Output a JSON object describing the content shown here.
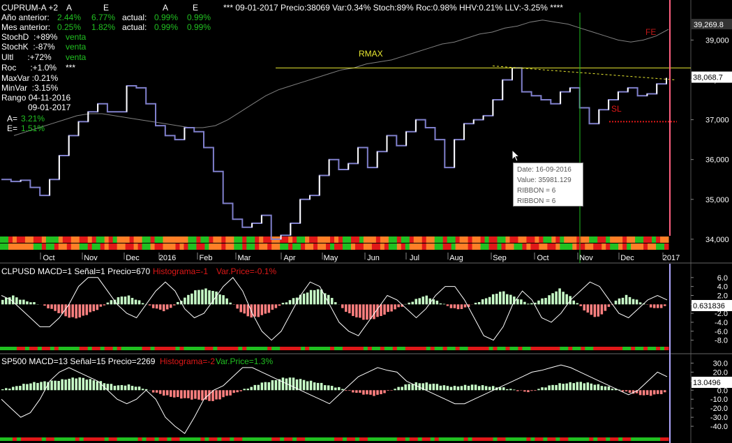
{
  "header": {
    "symbol": "CUPRUM-A +2",
    "col_a": "A",
    "col_e": "E",
    "col_a2": "A",
    "col_e2": "E",
    "year_label": "Año anterior:",
    "year_a": "2.44%",
    "year_e": "6.77%",
    "actual_label": "actual:",
    "year_actual_a": "0.99%",
    "year_actual_e": "0.99%",
    "month_label": "Mes anterior:",
    "month_a": "0.25%",
    "month_e": "1.82%",
    "month_actual_a": "0.99%",
    "month_actual_e": "0.99%",
    "summary": "*** 09-01-2017 Precio:38069 Var:0.34% Stoch:89% Roc:0.98% HHV:0.21% LLV:-3.25% ****"
  },
  "indicators": [
    {
      "label": "StochD  :+89%",
      "signal": "venta"
    },
    {
      "label": "StochK  :-87%",
      "signal": "venta"
    },
    {
      "label": "Ultl      :+72%",
      "signal": "venta"
    },
    {
      "label": "Roc      :+1.0%",
      "signal": "***"
    }
  ],
  "stats": {
    "maxvar": "MaxVar :0.21%",
    "minvar": "MinVar  :3.15%",
    "rango": "Rango 04-11-2016",
    "rango_end": "09-01-2017",
    "a_label": "A=",
    "a_value": "3.21%",
    "e_label": "E=",
    "e_value": "1.51%"
  },
  "tooltip": {
    "date": "Date: 16-09-2016",
    "value": "Value: 35981.129",
    "ribbon1": "RIBBON = 6",
    "ribbon2": "RIBBON = 6"
  },
  "labels": {
    "rmax": "RMAX",
    "sl": "SL",
    "fe": "FE"
  },
  "colors": {
    "price": "#8080cc",
    "up": "#ffffff",
    "green": "#21c021",
    "red": "#e01818",
    "orange": "#ff7f27",
    "yellow": "#e8e830",
    "pink": "#ff6080",
    "lavender": "#b0a8ff",
    "hist_pos": "#c8ffc8",
    "hist_neg": "#ff8080"
  },
  "chart_data": [
    {
      "type": "line",
      "title": "CUPRUM-A +2",
      "x_ticks": [
        "Oct",
        "Nov",
        "Dec",
        "2016",
        "Feb",
        "Mar",
        "Apr",
        "May",
        "Jun",
        "Jul",
        "Aug",
        "Sep",
        "Oct",
        "Nov",
        "Dec",
        "2017"
      ],
      "ylim": [
        33700,
        39900
      ],
      "y_ticks": [
        34000,
        35000,
        36000,
        37000,
        38000,
        39000
      ],
      "y_tick_labels": [
        "34,000",
        "35,000",
        "36,000",
        "37,000",
        "38,000",
        "39,000"
      ],
      "last_value_label": "38,068.7",
      "upper_value_label": "39,269.8",
      "rmax_level": 38300,
      "sl_level": 36950,
      "series": [
        {
          "values": [
            35500,
            35450,
            35480,
            35300,
            35100,
            35500,
            36100,
            36600,
            36950,
            37200,
            37400,
            37200,
            37200,
            37850,
            37800,
            37400,
            36850,
            36600,
            36500,
            36800,
            36700,
            36300,
            35700,
            34900,
            34500,
            34300,
            34400,
            34600,
            34000,
            34100,
            34400,
            35000,
            35100,
            35600,
            36000,
            35750,
            35900,
            36300,
            35800,
            36200,
            36600,
            36350,
            36700,
            37000,
            36800,
            36500,
            35800,
            36500,
            36900,
            37000,
            37100,
            37500,
            38000,
            38300,
            37700,
            37600,
            37500,
            37400,
            37700,
            37800,
            37300,
            36900,
            37250,
            37500,
            37700,
            37800,
            37600,
            37650,
            37900,
            38050
          ]
        },
        {
          "values": [
            36600,
            36700,
            36800,
            36900,
            37000,
            37100,
            37150,
            37150,
            37100,
            37050,
            37000,
            36950,
            36900,
            36850,
            36800,
            36800,
            36850,
            37000,
            37200,
            37400,
            37600,
            37750,
            37850,
            37950,
            38050,
            38150,
            38250,
            38300,
            38400,
            38450,
            38500,
            38600,
            38700,
            38800,
            38900,
            38950,
            39050,
            39150,
            39200,
            39300,
            39350,
            39450,
            39500,
            39450,
            39400,
            39300,
            39200,
            39100,
            39000,
            38950,
            39000,
            39100,
            39269
          ]
        }
      ]
    },
    {
      "type": "bar",
      "title": "CLPUSD MACD=1 Señal=1 Precio=670",
      "annotations": [
        "Histograma=-1",
        "Var.Price=-0.1%"
      ],
      "ylim": [
        -9,
        8
      ],
      "y_ticks": [
        6,
        4,
        2,
        0,
        -2,
        -4,
        -6,
        -8
      ],
      "y_tick_labels": [
        "6.0",
        "4.0",
        "2.0",
        "0.0",
        "-2.0",
        "-4.0",
        "-6.0",
        "-8.0"
      ],
      "last_value_label": "0.631836",
      "series": [
        {
          "values": [
            1,
            2,
            1,
            0.5,
            0,
            -1,
            -2,
            -3,
            -3,
            -2,
            -1,
            0.5,
            1.5,
            2,
            1,
            0,
            -1,
            -1.5,
            0,
            1.5,
            3,
            3.5,
            3,
            2,
            0,
            -2,
            -3,
            -2.5,
            -1.5,
            0,
            1,
            2,
            3,
            3.5,
            2,
            0,
            -2,
            -3,
            -3.5,
            -3,
            -2,
            -1,
            0,
            1,
            2,
            1,
            0,
            -1,
            -1,
            0,
            1,
            2,
            3,
            2,
            1,
            0,
            1,
            2,
            3.5,
            2,
            0,
            -2,
            -3,
            -1,
            1,
            2,
            1,
            0,
            -1,
            -0.5
          ]
        },
        {
          "values": [
            2,
            1,
            -1,
            -3,
            -5,
            -5,
            -3,
            0,
            4,
            6,
            6,
            3,
            0,
            -2,
            -3,
            0,
            3,
            5,
            3,
            -1,
            -3,
            -2,
            1,
            4,
            6,
            3,
            -2,
            -6,
            -8,
            -6,
            -2,
            2,
            5,
            4,
            0,
            -4,
            -6,
            -7,
            -4,
            -1,
            2,
            1,
            -1,
            -3,
            -1,
            2,
            4,
            4,
            1,
            -3,
            -7,
            -8,
            -5,
            0,
            3,
            1,
            -3,
            -4,
            -2,
            1,
            3,
            5,
            4,
            1,
            -2,
            -3,
            -1,
            1,
            2,
            1
          ]
        }
      ]
    },
    {
      "type": "bar",
      "title": "SP500 MACD=13 Señal=15 Precio=2269",
      "annotations": [
        "Histograma=-2",
        "Var.Price=1.3%"
      ],
      "ylim": [
        -50,
        35
      ],
      "y_ticks": [
        30,
        20,
        10,
        0,
        -10,
        -20,
        -30,
        -40
      ],
      "y_tick_labels": [
        "30.0",
        "20.0",
        "10.0",
        "0.0",
        "-10.0",
        "-20.0",
        "-30.0",
        "-40.0"
      ],
      "last_value_label": "13.0496",
      "series": [
        {
          "values": [
            1,
            3,
            6,
            8,
            9,
            10,
            11,
            13,
            14,
            12,
            10,
            7,
            5,
            6,
            4,
            1,
            -3,
            -6,
            -8,
            -9,
            -10,
            -11,
            -12,
            -8,
            -4,
            0,
            4,
            8,
            10,
            13,
            14,
            12,
            10,
            8,
            5,
            3,
            -1,
            -3,
            -5,
            -6,
            -2,
            2,
            6,
            8,
            8,
            7,
            5,
            4,
            5,
            6,
            5,
            4,
            3,
            1,
            -1,
            -2,
            2,
            5,
            7,
            8,
            9,
            8,
            6,
            4,
            1,
            -2,
            -4,
            -6,
            -5,
            -3
          ]
        },
        {
          "values": [
            -10,
            -20,
            -30,
            -25,
            -10,
            10,
            20,
            25,
            20,
            15,
            10,
            0,
            -10,
            -15,
            -10,
            0,
            -10,
            -30,
            -40,
            -48,
            -30,
            -10,
            0,
            5,
            15,
            25,
            25,
            20,
            15,
            10,
            5,
            0,
            -5,
            -10,
            -15,
            -5,
            5,
            15,
            20,
            25,
            22,
            20,
            10,
            5,
            0,
            -5,
            -10,
            -15,
            -15,
            -10,
            -5,
            0,
            5,
            10,
            15,
            20,
            22,
            25,
            28,
            25,
            20,
            15,
            10,
            5,
            0,
            -5,
            0,
            10,
            20,
            15
          ]
        }
      ]
    }
  ]
}
